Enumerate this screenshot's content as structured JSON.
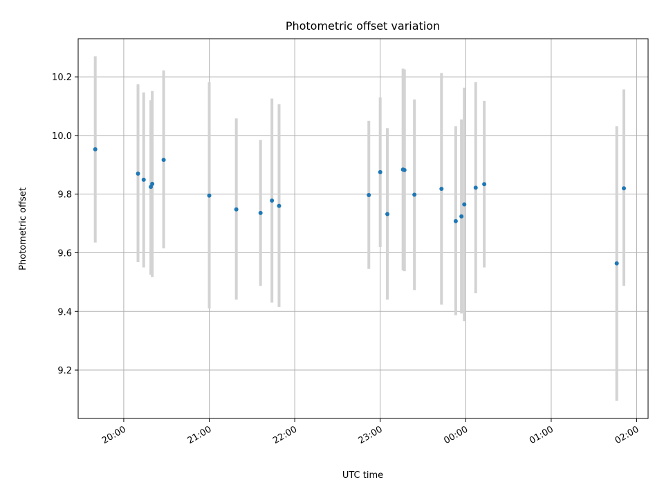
{
  "chart_data": {
    "type": "scatter",
    "title": "Photometric offset variation",
    "xlabel": "UTC time",
    "ylabel": "Photometric offset",
    "xlim": [
      "19:28",
      "02:08"
    ],
    "ylim": [
      9.035,
      10.33
    ],
    "grid": true,
    "x_ticks": [
      "20:00",
      "21:00",
      "22:00",
      "23:00",
      "00:00",
      "01:00",
      "02:00"
    ],
    "y_ticks": [
      9.2,
      9.4,
      9.6,
      9.8,
      10.0,
      10.2
    ],
    "y_tick_labels": [
      "9.2",
      "9.4",
      "9.6",
      "9.8",
      "10.0",
      "10.2"
    ],
    "point_color": "#1f77b4",
    "errorbar_color": "#d3d3d3",
    "points": [
      {
        "time": "19:40",
        "value": 9.953,
        "low": 9.635,
        "high": 10.27
      },
      {
        "time": "20:10",
        "value": 9.87,
        "low": 9.568,
        "high": 10.175
      },
      {
        "time": "20:14",
        "value": 9.849,
        "low": 9.55,
        "high": 10.147
      },
      {
        "time": "20:19",
        "value": 9.825,
        "low": 9.525,
        "high": 10.12
      },
      {
        "time": "20:20",
        "value": 9.835,
        "low": 9.517,
        "high": 10.152
      },
      {
        "time": "20:28",
        "value": 9.917,
        "low": 9.615,
        "high": 10.222
      },
      {
        "time": "21:00",
        "value": 9.795,
        "low": 9.41,
        "high": 10.182
      },
      {
        "time": "21:19",
        "value": 9.748,
        "low": 9.44,
        "high": 10.058
      },
      {
        "time": "21:36",
        "value": 9.736,
        "low": 9.487,
        "high": 9.985
      },
      {
        "time": "21:44",
        "value": 9.778,
        "low": 9.43,
        "high": 10.126
      },
      {
        "time": "21:49",
        "value": 9.76,
        "low": 9.415,
        "high": 10.107
      },
      {
        "time": "22:52",
        "value": 9.797,
        "low": 9.545,
        "high": 10.05
      },
      {
        "time": "23:00",
        "value": 9.875,
        "low": 9.62,
        "high": 10.13
      },
      {
        "time": "23:05",
        "value": 9.732,
        "low": 9.44,
        "high": 10.025
      },
      {
        "time": "23:16",
        "value": 9.884,
        "low": 9.54,
        "high": 10.228
      },
      {
        "time": "23:17",
        "value": 9.882,
        "low": 9.537,
        "high": 10.225
      },
      {
        "time": "23:24",
        "value": 9.798,
        "low": 9.473,
        "high": 10.123
      },
      {
        "time": "23:43",
        "value": 9.818,
        "low": 9.423,
        "high": 10.213
      },
      {
        "time": "23:53",
        "value": 9.708,
        "low": 9.387,
        "high": 10.032
      },
      {
        "time": "23:57",
        "value": 9.724,
        "low": 9.393,
        "high": 10.055
      },
      {
        "time": "23:59",
        "value": 9.765,
        "low": 9.367,
        "high": 10.163
      },
      {
        "time": "00:07",
        "value": 9.822,
        "low": 9.462,
        "high": 10.182
      },
      {
        "time": "00:13",
        "value": 9.834,
        "low": 9.55,
        "high": 10.118
      },
      {
        "time": "01:46",
        "value": 9.564,
        "low": 9.095,
        "high": 10.032
      },
      {
        "time": "01:51",
        "value": 9.82,
        "low": 9.487,
        "high": 10.157
      }
    ]
  }
}
